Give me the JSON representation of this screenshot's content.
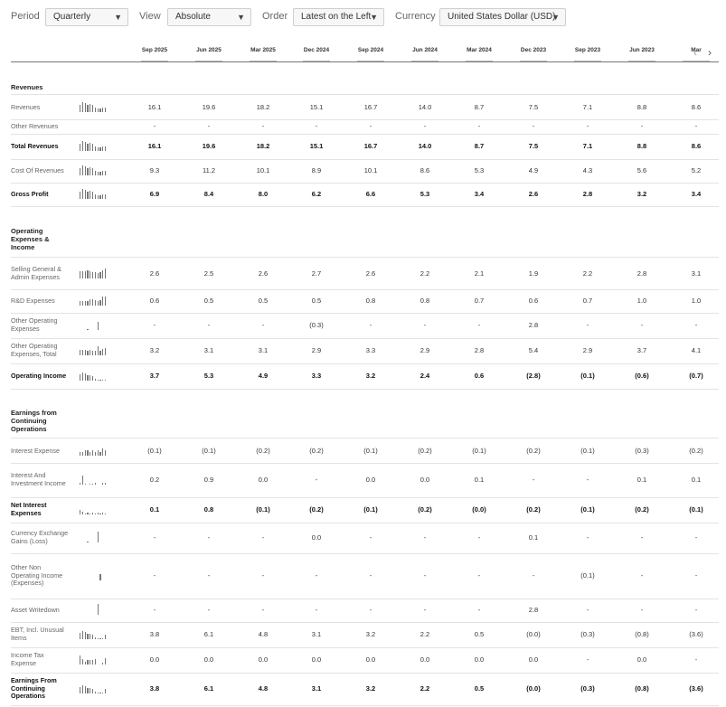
{
  "controls": {
    "period_label": "Period",
    "period_value": "Quarterly",
    "view_label": "View",
    "view_value": "Absolute",
    "order_label": "Order",
    "order_value": "Latest on the Left",
    "currency_label": "Currency",
    "currency_value": "United States Dollar (USD)",
    "caret": "▼"
  },
  "columns": [
    "Sep 2025",
    "Jun 2025",
    "Mar 2025",
    "Dec 2024",
    "Sep 2024",
    "Jun 2024",
    "Mar 2024",
    "Dec 2023",
    "Sep 2023",
    "Jun 2023",
    "Mar"
  ],
  "nav": {
    "prev": "‹",
    "next": "›"
  },
  "sections": {
    "revenues": "Revenues",
    "opex": "Operating Expenses & Income",
    "earnings": "Earnings from Continuing Operations"
  },
  "rows": [
    {
      "label": "Revenues",
      "values": [
        "16.1",
        "19.6",
        "18.2",
        "15.1",
        "16.7",
        "14.0",
        "8.7",
        "7.5",
        "7.1",
        "8.8",
        "8.6"
      ]
    },
    {
      "label": "Other Revenues",
      "values": [
        "-",
        "-",
        "-",
        "-",
        "-",
        "-",
        "-",
        "-",
        "-",
        "-",
        "-"
      ]
    },
    {
      "label": "Total Revenues",
      "values": [
        "16.1",
        "19.6",
        "18.2",
        "15.1",
        "16.7",
        "14.0",
        "8.7",
        "7.5",
        "7.1",
        "8.8",
        "8.6"
      ]
    },
    {
      "label": "Cost Of Revenues",
      "values": [
        "9.3",
        "11.2",
        "10.1",
        "8.9",
        "10.1",
        "8.6",
        "5.3",
        "4.9",
        "4.3",
        "5.6",
        "5.2"
      ]
    },
    {
      "label": "Gross Profit",
      "values": [
        "6.9",
        "8.4",
        "8.0",
        "6.2",
        "6.6",
        "5.3",
        "3.4",
        "2.6",
        "2.8",
        "3.2",
        "3.4"
      ]
    },
    {
      "label": "Selling General & Admin Expenses",
      "values": [
        "2.6",
        "2.5",
        "2.6",
        "2.7",
        "2.6",
        "2.2",
        "2.1",
        "1.9",
        "2.2",
        "2.8",
        "3.1"
      ]
    },
    {
      "label": "R&D Expenses",
      "values": [
        "0.6",
        "0.5",
        "0.5",
        "0.5",
        "0.8",
        "0.8",
        "0.7",
        "0.6",
        "0.7",
        "1.0",
        "1.0"
      ]
    },
    {
      "label": "Other Operating Expenses",
      "values": [
        "-",
        "-",
        "-",
        "(0.3)",
        "-",
        "-",
        "-",
        "2.8",
        "-",
        "-",
        "-"
      ]
    },
    {
      "label": "Other Operating Expenses, Total",
      "values": [
        "3.2",
        "3.1",
        "3.1",
        "2.9",
        "3.3",
        "2.9",
        "2.8",
        "5.4",
        "2.9",
        "3.7",
        "4.1"
      ]
    },
    {
      "label": "Operating Income",
      "values": [
        "3.7",
        "5.3",
        "4.9",
        "3.3",
        "3.2",
        "2.4",
        "0.6",
        "(2.8)",
        "(0.1)",
        "(0.6)",
        "(0.7)"
      ]
    },
    {
      "label": "Interest Expense",
      "values": [
        "(0.1)",
        "(0.1)",
        "(0.2)",
        "(0.2)",
        "(0.1)",
        "(0.2)",
        "(0.1)",
        "(0.2)",
        "(0.1)",
        "(0.3)",
        "(0.2)"
      ]
    },
    {
      "label": "Interest And Investment Income",
      "values": [
        "0.2",
        "0.9",
        "0.0",
        "-",
        "0.0",
        "0.0",
        "0.1",
        "-",
        "-",
        "0.1",
        "0.1"
      ]
    },
    {
      "label": "Net Interest Expenses",
      "values": [
        "0.1",
        "0.8",
        "(0.1)",
        "(0.2)",
        "(0.1)",
        "(0.2)",
        "(0.0)",
        "(0.2)",
        "(0.1)",
        "(0.2)",
        "(0.1)"
      ]
    },
    {
      "label": "Currency Exchange Gains (Loss)",
      "values": [
        "-",
        "-",
        "-",
        "0.0",
        "-",
        "-",
        "-",
        "0.1",
        "-",
        "-",
        "-"
      ]
    },
    {
      "label": "Other Non Operating Income (Expenses)",
      "values": [
        "-",
        "-",
        "-",
        "-",
        "-",
        "-",
        "-",
        "-",
        "(0.1)",
        "-",
        "-"
      ]
    },
    {
      "label": "Asset Writedown",
      "values": [
        "-",
        "-",
        "-",
        "-",
        "-",
        "-",
        "-",
        "2.8",
        "-",
        "-",
        "-"
      ]
    },
    {
      "label": "EBT, Incl. Unusual Items",
      "values": [
        "3.8",
        "6.1",
        "4.8",
        "3.1",
        "3.2",
        "2.2",
        "0.5",
        "(0.0)",
        "(0.3)",
        "(0.8)",
        "(3.6)"
      ]
    },
    {
      "label": "Income Tax Expense",
      "values": [
        "0.0",
        "0.0",
        "0.0",
        "0.0",
        "0.0",
        "0.0",
        "0.0",
        "0.0",
        "-",
        "0.0",
        "-"
      ]
    },
    {
      "label": "Earnings From Continuing Operations",
      "values": [
        "3.8",
        "6.1",
        "4.8",
        "3.1",
        "3.2",
        "2.2",
        "0.5",
        "(0.0)",
        "(0.3)",
        "(0.8)",
        "(3.6)"
      ]
    }
  ]
}
